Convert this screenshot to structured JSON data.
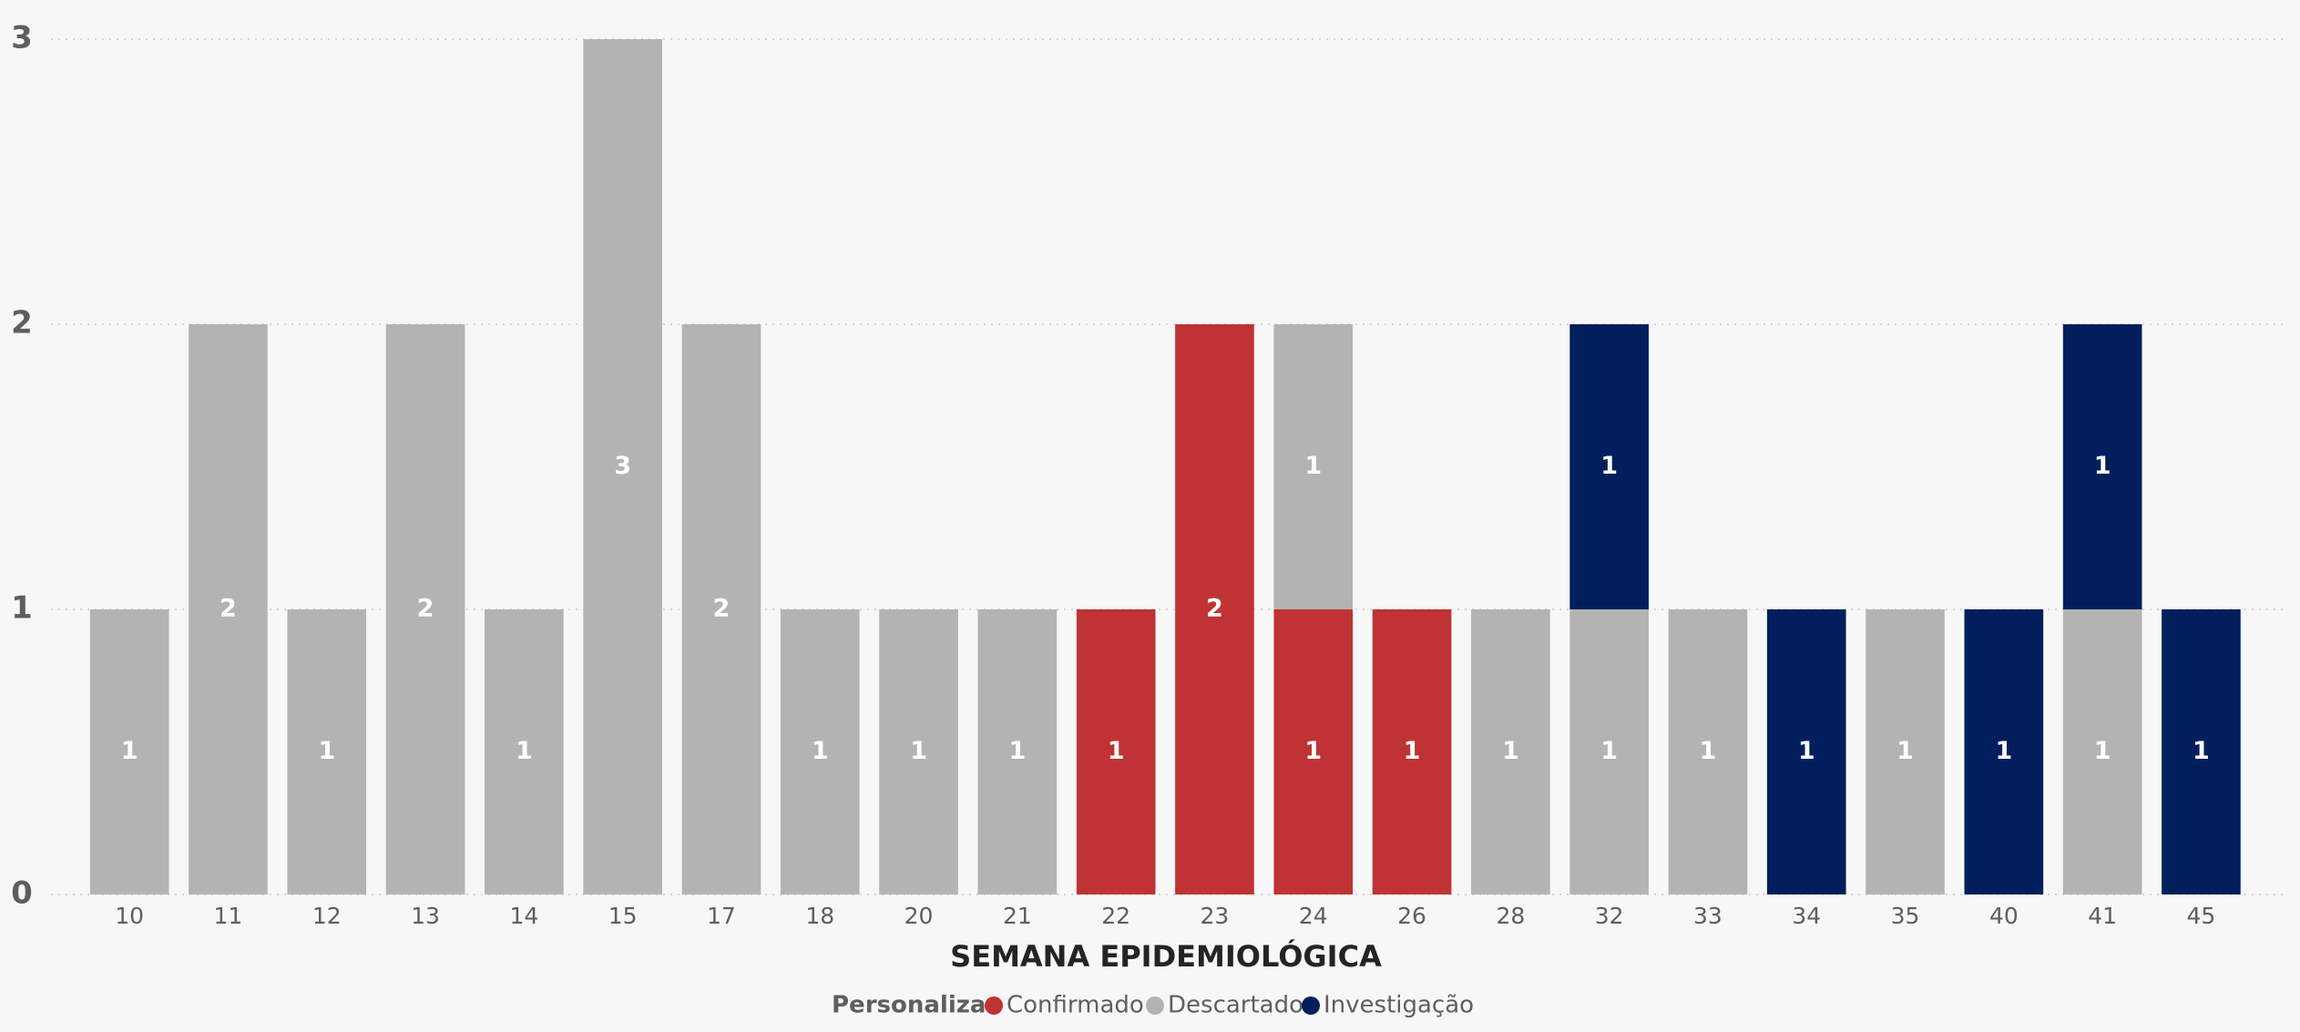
{
  "chart_data": {
    "type": "stacked_bar",
    "x_label": "SEMANA EPIDEMIOLÓGICA",
    "legend_title": "Personalizar",
    "categories": [
      "10",
      "11",
      "12",
      "13",
      "14",
      "15",
      "17",
      "18",
      "20",
      "21",
      "22",
      "23",
      "24",
      "26",
      "28",
      "32",
      "33",
      "34",
      "35",
      "40",
      "41",
      "45"
    ],
    "series": [
      {
        "name": "Confirmado",
        "color": "#bf3335",
        "values": [
          null,
          null,
          null,
          null,
          null,
          null,
          null,
          null,
          null,
          null,
          1,
          2,
          1,
          1,
          null,
          null,
          null,
          null,
          null,
          null,
          null,
          null
        ]
      },
      {
        "name": "Descartado",
        "color": "#b3b3b3",
        "values": [
          1,
          2,
          1,
          2,
          1,
          3,
          2,
          1,
          1,
          1,
          null,
          null,
          1,
          null,
          1,
          1,
          1,
          null,
          1,
          null,
          1,
          null
        ]
      },
      {
        "name": "Investigação",
        "color": "#001f5c",
        "values": [
          null,
          null,
          null,
          null,
          null,
          null,
          null,
          null,
          null,
          null,
          null,
          null,
          null,
          null,
          null,
          1,
          null,
          1,
          null,
          1,
          1,
          1
        ]
      }
    ],
    "ylim": [
      0,
      3
    ],
    "yticks": [
      0,
      1,
      2,
      3
    ],
    "grid": true,
    "legend": "bottom"
  }
}
